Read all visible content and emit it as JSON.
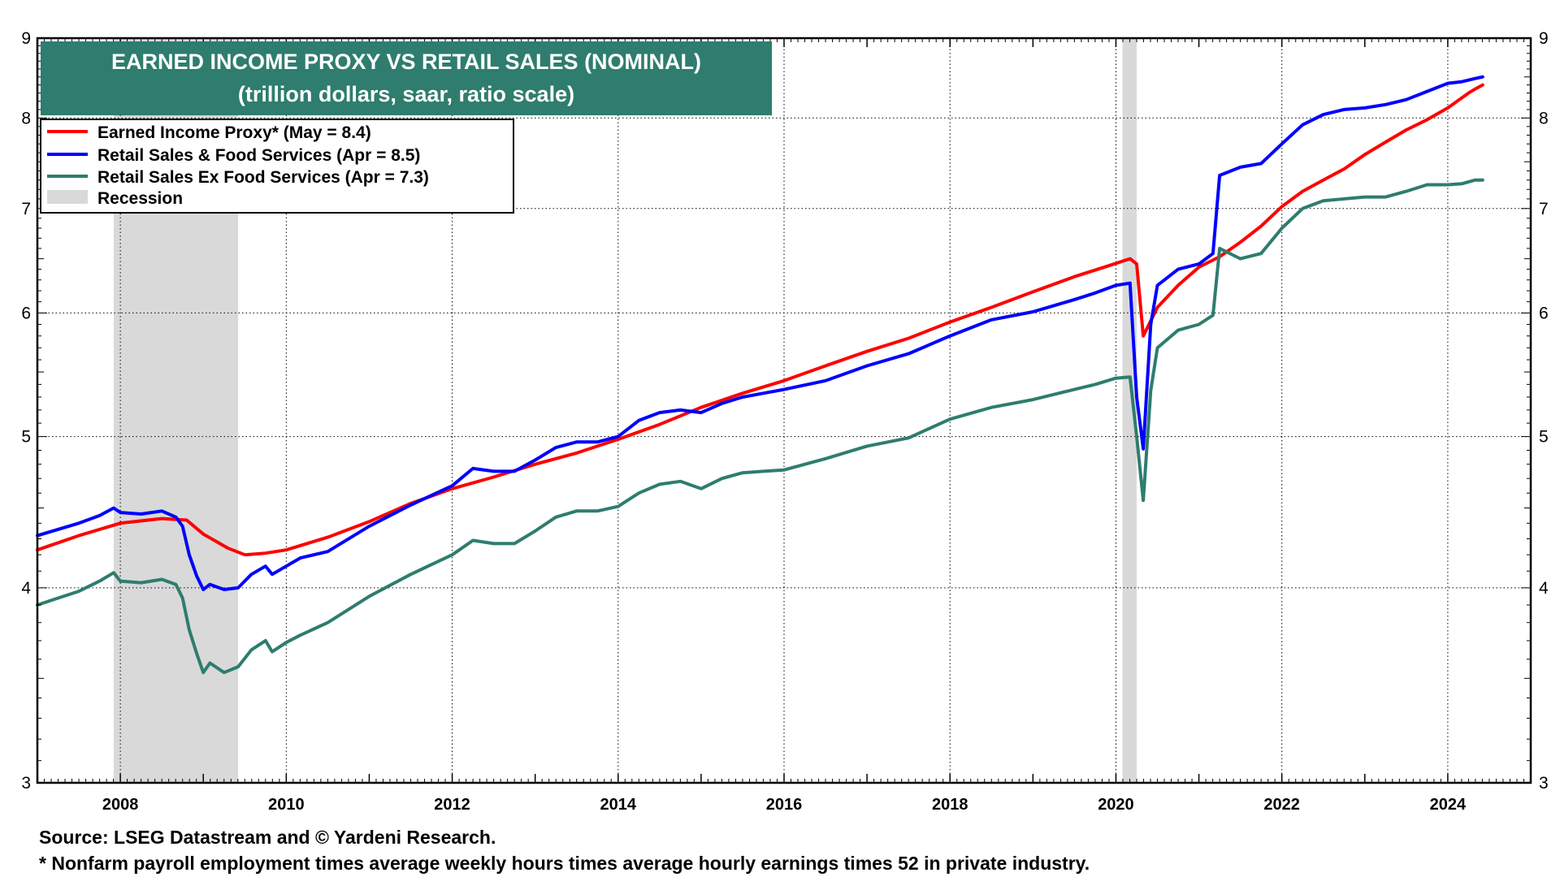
{
  "chart_data": {
    "type": "line",
    "title": "EARNED INCOME PROXY VS RETAIL SALES (NOMINAL)",
    "subtitle": "(trillion dollars, saar, ratio scale)",
    "y_scale": "log",
    "ylim": [
      3,
      9
    ],
    "xlim": [
      2007.0,
      2025.0
    ],
    "y_ticks": [
      3,
      4,
      5,
      6,
      7,
      8,
      9
    ],
    "y_tick_labels": [
      "3",
      "4",
      "5",
      "6",
      "7",
      "8",
      "9"
    ],
    "x_ticks": [
      2008,
      2010,
      2012,
      2014,
      2016,
      2018,
      2020,
      2022,
      2024
    ],
    "x_tick_labels": [
      "2008",
      "2010",
      "2012",
      "2014",
      "2016",
      "2018",
      "2020",
      "2022",
      "2024"
    ],
    "grid": "both",
    "legend_position": "top-left",
    "recessions": [
      {
        "start": 2007.92,
        "end": 2009.42
      },
      {
        "start": 2020.08,
        "end": 2020.25
      }
    ],
    "recession_label": "Recession",
    "recession_color": "#d9d9d9",
    "series": [
      {
        "name": "Earned Income Proxy* (May = 8.4)",
        "color": "#ff0000",
        "points": [
          [
            2007.0,
            4.23
          ],
          [
            2007.5,
            4.32
          ],
          [
            2008.0,
            4.4
          ],
          [
            2008.5,
            4.43
          ],
          [
            2008.8,
            4.42
          ],
          [
            2009.0,
            4.33
          ],
          [
            2009.3,
            4.24
          ],
          [
            2009.5,
            4.2
          ],
          [
            2009.75,
            4.21
          ],
          [
            2010.0,
            4.23
          ],
          [
            2010.5,
            4.31
          ],
          [
            2011.0,
            4.41
          ],
          [
            2011.5,
            4.53
          ],
          [
            2012.0,
            4.63
          ],
          [
            2012.5,
            4.71
          ],
          [
            2013.0,
            4.8
          ],
          [
            2013.5,
            4.88
          ],
          [
            2014.0,
            4.98
          ],
          [
            2014.5,
            5.09
          ],
          [
            2015.0,
            5.22
          ],
          [
            2015.5,
            5.33
          ],
          [
            2016.0,
            5.43
          ],
          [
            2016.5,
            5.55
          ],
          [
            2017.0,
            5.67
          ],
          [
            2017.5,
            5.78
          ],
          [
            2018.0,
            5.92
          ],
          [
            2018.5,
            6.05
          ],
          [
            2019.0,
            6.19
          ],
          [
            2019.5,
            6.33
          ],
          [
            2019.9,
            6.43
          ],
          [
            2020.17,
            6.5
          ],
          [
            2020.25,
            6.45
          ],
          [
            2020.33,
            5.8
          ],
          [
            2020.5,
            6.05
          ],
          [
            2020.75,
            6.25
          ],
          [
            2021.0,
            6.42
          ],
          [
            2021.25,
            6.52
          ],
          [
            2021.5,
            6.66
          ],
          [
            2021.75,
            6.82
          ],
          [
            2022.0,
            7.02
          ],
          [
            2022.25,
            7.18
          ],
          [
            2022.5,
            7.3
          ],
          [
            2022.75,
            7.42
          ],
          [
            2023.0,
            7.58
          ],
          [
            2023.25,
            7.72
          ],
          [
            2023.5,
            7.86
          ],
          [
            2023.75,
            7.98
          ],
          [
            2024.0,
            8.12
          ],
          [
            2024.25,
            8.3
          ],
          [
            2024.33,
            8.35
          ],
          [
            2024.42,
            8.4
          ]
        ]
      },
      {
        "name": "Retail Sales & Food Services (Apr = 8.5)",
        "color": "#0000ff",
        "points": [
          [
            2007.0,
            4.32
          ],
          [
            2007.25,
            4.36
          ],
          [
            2007.5,
            4.4
          ],
          [
            2007.75,
            4.45
          ],
          [
            2007.92,
            4.5
          ],
          [
            2008.0,
            4.47
          ],
          [
            2008.25,
            4.46
          ],
          [
            2008.5,
            4.48
          ],
          [
            2008.67,
            4.44
          ],
          [
            2008.75,
            4.38
          ],
          [
            2008.83,
            4.2
          ],
          [
            2008.92,
            4.07
          ],
          [
            2009.0,
            3.99
          ],
          [
            2009.08,
            4.02
          ],
          [
            2009.25,
            3.99
          ],
          [
            2009.42,
            4.0
          ],
          [
            2009.58,
            4.08
          ],
          [
            2009.75,
            4.13
          ],
          [
            2009.83,
            4.08
          ],
          [
            2010.0,
            4.13
          ],
          [
            2010.17,
            4.18
          ],
          [
            2010.5,
            4.22
          ],
          [
            2011.0,
            4.38
          ],
          [
            2011.5,
            4.52
          ],
          [
            2012.0,
            4.65
          ],
          [
            2012.25,
            4.77
          ],
          [
            2012.5,
            4.75
          ],
          [
            2012.75,
            4.75
          ],
          [
            2013.0,
            4.83
          ],
          [
            2013.25,
            4.92
          ],
          [
            2013.5,
            4.96
          ],
          [
            2013.75,
            4.96
          ],
          [
            2014.0,
            5.0
          ],
          [
            2014.25,
            5.12
          ],
          [
            2014.5,
            5.18
          ],
          [
            2014.75,
            5.2
          ],
          [
            2015.0,
            5.18
          ],
          [
            2015.25,
            5.25
          ],
          [
            2015.5,
            5.3
          ],
          [
            2015.75,
            5.33
          ],
          [
            2016.0,
            5.36
          ],
          [
            2016.5,
            5.43
          ],
          [
            2017.0,
            5.55
          ],
          [
            2017.5,
            5.65
          ],
          [
            2018.0,
            5.8
          ],
          [
            2018.5,
            5.94
          ],
          [
            2019.0,
            6.01
          ],
          [
            2019.5,
            6.12
          ],
          [
            2019.75,
            6.18
          ],
          [
            2020.0,
            6.25
          ],
          [
            2020.17,
            6.27
          ],
          [
            2020.25,
            5.3
          ],
          [
            2020.33,
            4.91
          ],
          [
            2020.42,
            5.9
          ],
          [
            2020.5,
            6.25
          ],
          [
            2020.75,
            6.4
          ],
          [
            2021.0,
            6.45
          ],
          [
            2021.17,
            6.55
          ],
          [
            2021.25,
            7.35
          ],
          [
            2021.5,
            7.44
          ],
          [
            2021.75,
            7.48
          ],
          [
            2022.0,
            7.7
          ],
          [
            2022.25,
            7.92
          ],
          [
            2022.5,
            8.04
          ],
          [
            2022.75,
            8.1
          ],
          [
            2023.0,
            8.12
          ],
          [
            2023.25,
            8.16
          ],
          [
            2023.5,
            8.22
          ],
          [
            2023.75,
            8.32
          ],
          [
            2024.0,
            8.42
          ],
          [
            2024.17,
            8.44
          ],
          [
            2024.33,
            8.48
          ],
          [
            2024.42,
            8.5
          ]
        ]
      },
      {
        "name": "Retail Sales Ex Food Services (Apr = 7.3)",
        "color": "#2e7d6e",
        "points": [
          [
            2007.0,
            3.9
          ],
          [
            2007.25,
            3.94
          ],
          [
            2007.5,
            3.98
          ],
          [
            2007.75,
            4.04
          ],
          [
            2007.92,
            4.09
          ],
          [
            2008.0,
            4.04
          ],
          [
            2008.25,
            4.03
          ],
          [
            2008.5,
            4.05
          ],
          [
            2008.67,
            4.02
          ],
          [
            2008.75,
            3.94
          ],
          [
            2008.83,
            3.76
          ],
          [
            2008.92,
            3.63
          ],
          [
            2009.0,
            3.53
          ],
          [
            2009.08,
            3.58
          ],
          [
            2009.25,
            3.53
          ],
          [
            2009.42,
            3.56
          ],
          [
            2009.58,
            3.65
          ],
          [
            2009.75,
            3.7
          ],
          [
            2009.83,
            3.64
          ],
          [
            2010.0,
            3.69
          ],
          [
            2010.17,
            3.73
          ],
          [
            2010.5,
            3.8
          ],
          [
            2011.0,
            3.95
          ],
          [
            2011.5,
            4.08
          ],
          [
            2012.0,
            4.2
          ],
          [
            2012.25,
            4.29
          ],
          [
            2012.5,
            4.27
          ],
          [
            2012.75,
            4.27
          ],
          [
            2013.0,
            4.35
          ],
          [
            2013.25,
            4.44
          ],
          [
            2013.5,
            4.48
          ],
          [
            2013.75,
            4.48
          ],
          [
            2014.0,
            4.51
          ],
          [
            2014.25,
            4.6
          ],
          [
            2014.5,
            4.66
          ],
          [
            2014.75,
            4.68
          ],
          [
            2015.0,
            4.63
          ],
          [
            2015.25,
            4.7
          ],
          [
            2015.5,
            4.74
          ],
          [
            2015.75,
            4.75
          ],
          [
            2016.0,
            4.76
          ],
          [
            2016.5,
            4.84
          ],
          [
            2017.0,
            4.93
          ],
          [
            2017.5,
            4.99
          ],
          [
            2018.0,
            5.13
          ],
          [
            2018.5,
            5.22
          ],
          [
            2019.0,
            5.28
          ],
          [
            2019.5,
            5.36
          ],
          [
            2019.75,
            5.4
          ],
          [
            2020.0,
            5.45
          ],
          [
            2020.17,
            5.46
          ],
          [
            2020.25,
            5.0
          ],
          [
            2020.33,
            4.55
          ],
          [
            2020.42,
            5.35
          ],
          [
            2020.5,
            5.7
          ],
          [
            2020.75,
            5.85
          ],
          [
            2021.0,
            5.9
          ],
          [
            2021.17,
            5.98
          ],
          [
            2021.25,
            6.6
          ],
          [
            2021.5,
            6.5
          ],
          [
            2021.75,
            6.55
          ],
          [
            2022.0,
            6.8
          ],
          [
            2022.25,
            7.0
          ],
          [
            2022.5,
            7.08
          ],
          [
            2022.75,
            7.1
          ],
          [
            2023.0,
            7.12
          ],
          [
            2023.25,
            7.12
          ],
          [
            2023.5,
            7.18
          ],
          [
            2023.75,
            7.25
          ],
          [
            2024.0,
            7.25
          ],
          [
            2024.17,
            7.26
          ],
          [
            2024.33,
            7.3
          ],
          [
            2024.42,
            7.3
          ]
        ]
      }
    ]
  },
  "footer": {
    "source": "Source: LSEG Datastream and © Yardeni Research.",
    "note": "* Nonfarm payroll employment times average weekly hours times average hourly earnings times 52 in private industry."
  }
}
